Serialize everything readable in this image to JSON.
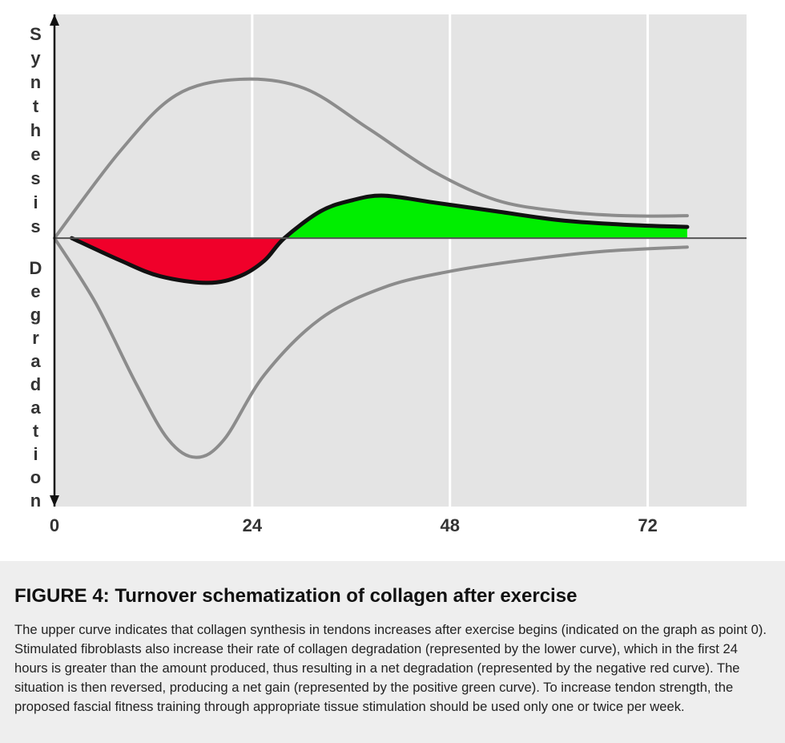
{
  "chart_data": {
    "type": "line",
    "y_label_top": "Synthesis",
    "y_label_bottom": "Degradation",
    "xlim": [
      0,
      84
    ],
    "ylim": [
      -12,
      10
    ],
    "xticks": [
      0,
      24,
      48,
      72
    ],
    "grid": true,
    "positive_fill": "#00ee00",
    "negative_fill": "#f0002a",
    "series": [
      {
        "name": "synthesis",
        "color": "#8c8c8c",
        "x": [
          0,
          8,
          14.8,
          22.5,
          30.3,
          38.1,
          45.9,
          53.6,
          61.4,
          69.2,
          76.8
        ],
        "values": [
          0,
          3.9,
          6.4,
          7.1,
          6.7,
          4.9,
          3.0,
          1.7,
          1.2,
          1.0,
          1.0
        ]
      },
      {
        "name": "degradation",
        "color": "#8c8c8c",
        "x": [
          0,
          5,
          9.9,
          13.8,
          17.2,
          20.6,
          25.5,
          32.3,
          40,
          47.8,
          56.6,
          66.3,
          76.8
        ],
        "values": [
          0,
          -2.9,
          -6.5,
          -9,
          -9.8,
          -9,
          -6.1,
          -3.6,
          -2.2,
          -1.5,
          -1,
          -0.6,
          -0.4
        ]
      },
      {
        "name": "net",
        "color": "#111111",
        "fill_between_zero": true,
        "x": [
          2.1,
          8,
          12.8,
          18.6,
          22.5,
          25.5,
          27.9,
          32.3,
          36.2,
          40,
          45.9,
          53.6,
          61.4,
          69.2,
          76.8
        ],
        "values": [
          0,
          -1,
          -1.7,
          -2,
          -1.7,
          -1,
          0,
          1.2,
          1.7,
          1.9,
          1.6,
          1.2,
          0.8,
          0.6,
          0.5
        ]
      }
    ]
  },
  "caption": {
    "title": "FIGURE 4: Turnover schematization of collagen after exercise",
    "body": "The upper curve indicates that collagen synthesis in tendons increases after exercise begins (indicated on the graph as point 0). Stimulated fibroblasts also increase their rate of collagen degradation (represented by the lower curve), which in the first 24 hours is greater than the amount produced, thus resulting in a net degradation (represented by the negative red curve). The situation is then reversed, producing a net gain (represented by the positive green curve). To increase tendon strength, the proposed fascial fitness training through appropriate tissue stimulation should be used only one or twice per week."
  }
}
